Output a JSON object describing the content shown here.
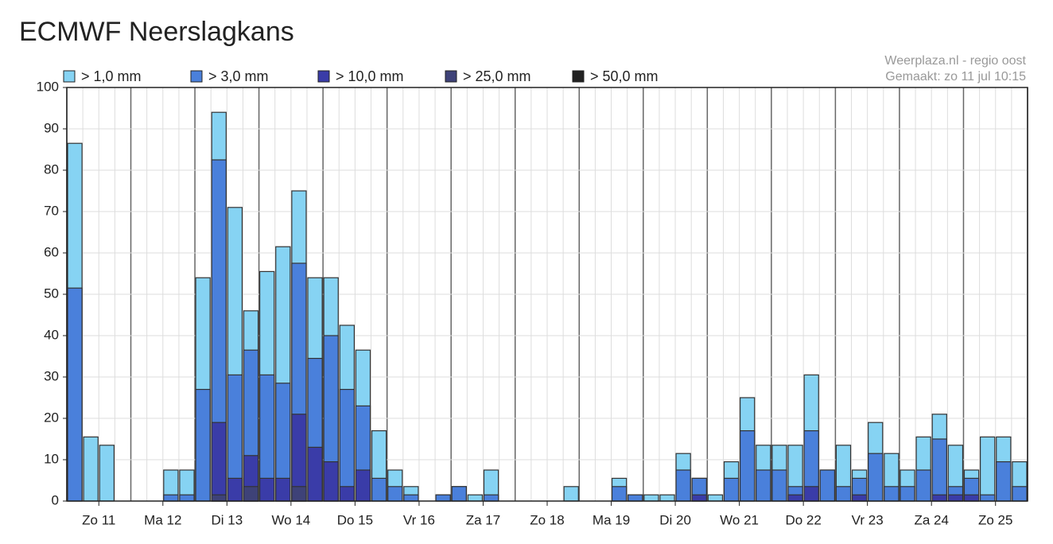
{
  "chart_data": {
    "type": "bar",
    "title": "ECMWF Neerslagkans",
    "source": "Weerplaza.nl - regio oost",
    "created": "Gemaakt: zo 11 jul 10:15",
    "categories": [
      null,
      "Zo 11",
      null,
      null,
      null,
      "Ma 12",
      null,
      null,
      null,
      "Di 13",
      null,
      null,
      null,
      "Wo 14",
      null,
      null,
      null,
      "Do 15",
      null,
      null,
      null,
      "Vr 16",
      null,
      null,
      null,
      "Za 17",
      null,
      null,
      null,
      "Zo 18",
      null,
      null,
      null,
      "Ma 19",
      null,
      null,
      null,
      "Di 20",
      null,
      null,
      null,
      "Wo 21",
      null,
      null,
      null,
      "Do 22",
      null,
      null,
      null,
      "Vr 23",
      null,
      null,
      null,
      "Za 24",
      null,
      null,
      null,
      "Zo 25",
      null,
      null
    ],
    "series": [
      {
        "name": "> 1,0 mm",
        "color": "#86d3f3",
        "values": [
          86.5,
          15.5,
          13.5,
          0,
          0,
          0,
          7.5,
          7.5,
          54,
          94,
          71,
          46,
          55.5,
          61.5,
          75,
          54,
          54,
          42.5,
          36.5,
          17,
          7.5,
          3.5,
          0,
          1.5,
          3.5,
          1.5,
          7.5,
          0,
          0,
          0,
          0,
          3.5,
          0,
          0,
          5.5,
          1.5,
          1.5,
          1.5,
          11.5,
          5.5,
          1.5,
          9.5,
          25,
          13.5,
          13.5,
          13.5,
          30.5,
          7.5,
          13.5,
          7.5,
          19,
          11.5,
          7.5,
          15.5,
          21,
          13.5,
          7.5,
          15.5,
          15.5,
          9.5
        ]
      },
      {
        "name": "> 3,0 mm",
        "color": "#4a80db",
        "values": [
          51.5,
          0,
          0,
          0,
          0,
          0,
          1.5,
          1.5,
          27,
          82.5,
          30.5,
          36.5,
          30.5,
          28.5,
          57.5,
          34.5,
          40,
          27,
          23,
          5.5,
          3.5,
          1.5,
          0,
          1.5,
          3.5,
          0,
          1.5,
          0,
          0,
          0,
          0,
          0,
          0,
          0,
          3.5,
          1.5,
          0,
          0,
          7.5,
          5.5,
          0,
          5.5,
          17,
          7.5,
          7.5,
          3.5,
          17,
          7.5,
          3.5,
          5.5,
          11.5,
          3.5,
          3.5,
          7.5,
          15,
          3.5,
          5.5,
          1.5,
          9.5,
          3.5
        ]
      },
      {
        "name": "> 10,0 mm",
        "color": "#3a3ca8",
        "values": [
          0,
          0,
          0,
          0,
          0,
          0,
          0,
          0,
          0,
          19,
          5.5,
          11,
          5.5,
          5.5,
          21,
          13,
          9.5,
          3.5,
          7.5,
          0,
          0,
          0,
          0,
          0,
          0,
          0,
          0,
          0,
          0,
          0,
          0,
          0,
          0,
          0,
          0,
          0,
          0,
          0,
          0,
          1.5,
          0,
          0,
          0,
          0,
          0,
          1.5,
          3.5,
          0,
          0,
          1.5,
          0,
          0,
          0,
          0,
          1.5,
          1.5,
          1.5,
          0,
          0,
          0
        ]
      },
      {
        "name": "> 25,0 mm",
        "color": "#3e4278",
        "values": [
          0,
          0,
          0,
          0,
          0,
          0,
          0,
          0,
          0,
          1.5,
          0,
          3.5,
          0,
          0,
          3.5,
          0,
          0,
          0,
          0,
          0,
          0,
          0,
          0,
          0,
          0,
          0,
          0,
          0,
          0,
          0,
          0,
          0,
          0,
          0,
          0,
          0,
          0,
          0,
          0,
          0,
          0,
          0,
          0,
          0,
          0,
          0,
          0,
          0,
          0,
          0,
          0,
          0,
          0,
          0,
          0,
          0,
          0,
          0,
          0,
          0
        ]
      },
      {
        "name": "> 50,0 mm",
        "color": "#222222",
        "values": [
          0,
          0,
          0,
          0,
          0,
          0,
          0,
          0,
          0,
          0,
          0,
          0,
          0,
          0,
          0,
          0,
          0,
          0,
          0,
          0,
          0,
          0,
          0,
          0,
          0,
          0,
          0,
          0,
          0,
          0,
          0,
          0,
          0,
          0,
          0,
          0,
          0,
          0,
          0,
          0,
          0,
          0,
          0,
          0,
          0,
          0,
          0,
          0,
          0,
          0,
          0,
          0,
          0,
          0,
          0,
          0,
          0,
          0,
          0,
          0
        ]
      }
    ],
    "ylim": [
      0,
      100
    ],
    "yticks": [
      0,
      10,
      20,
      30,
      40,
      50,
      60,
      70,
      80,
      90,
      100
    ],
    "grid": true
  }
}
